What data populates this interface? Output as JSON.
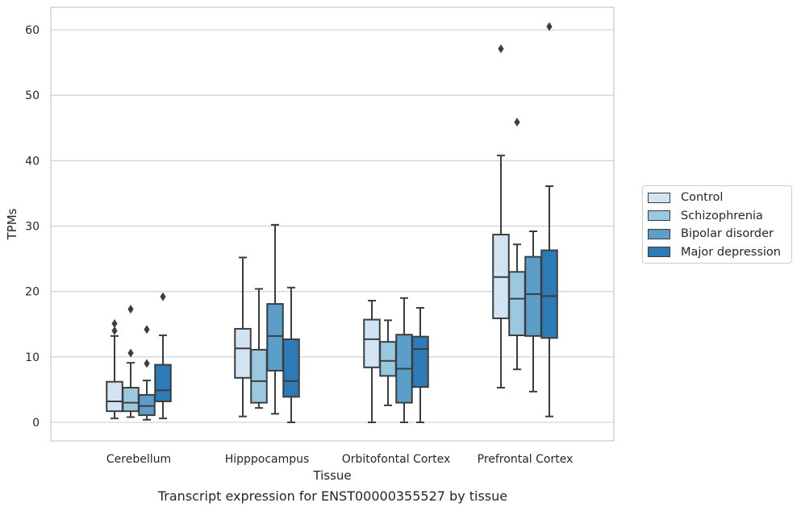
{
  "chart_data": {
    "type": "box",
    "xlabel": "Tissue",
    "ylabel": "TPMs",
    "caption": "Transcript expression for ENST00000355527 by tissue",
    "categories": [
      "Cerebellum",
      "Hipppocampus",
      "Orbitofontal Cortex",
      "Prefrontal Cortex"
    ],
    "y_ticks": [
      0,
      10,
      20,
      30,
      40,
      50,
      60
    ],
    "ylim": [
      -2.8,
      63.5
    ],
    "grid": "horizontal",
    "legend_position": "right",
    "series": [
      {
        "name": "Control",
        "color": "#d2e3f3",
        "boxes": [
          {
            "whislo": 0.6,
            "q1": 1.7,
            "med": 3.2,
            "q3": 6.2,
            "whishi": 13.2,
            "fliers": [
              14.0,
              15.1
            ]
          },
          {
            "whislo": 0.9,
            "q1": 6.8,
            "med": 11.3,
            "q3": 14.3,
            "whishi": 25.2,
            "fliers": []
          },
          {
            "whislo": 0.0,
            "q1": 8.4,
            "med": 12.7,
            "q3": 15.7,
            "whishi": 18.6,
            "fliers": []
          },
          {
            "whislo": 5.3,
            "q1": 15.9,
            "med": 22.2,
            "q3": 28.7,
            "whishi": 40.8,
            "fliers": [
              57.1
            ]
          }
        ]
      },
      {
        "name": "Schizophrenia",
        "color": "#9ac8e0",
        "boxes": [
          {
            "whislo": 0.8,
            "q1": 1.7,
            "med": 3.0,
            "q3": 5.3,
            "whishi": 9.1,
            "fliers": [
              10.6,
              17.3
            ]
          },
          {
            "whislo": 2.2,
            "q1": 3.0,
            "med": 6.3,
            "q3": 11.1,
            "whishi": 20.4,
            "fliers": []
          },
          {
            "whislo": 2.6,
            "q1": 7.1,
            "med": 9.4,
            "q3": 12.3,
            "whishi": 15.6,
            "fliers": []
          },
          {
            "whislo": 8.1,
            "q1": 13.3,
            "med": 18.9,
            "q3": 23.0,
            "whishi": 27.2,
            "fliers": [
              45.9
            ]
          }
        ]
      },
      {
        "name": "Bipolar disorder",
        "color": "#5a9ec9",
        "boxes": [
          {
            "whislo": 0.4,
            "q1": 1.1,
            "med": 2.5,
            "q3": 4.2,
            "whishi": 6.4,
            "fliers": [
              9.0,
              14.2
            ]
          },
          {
            "whislo": 1.3,
            "q1": 7.9,
            "med": 13.2,
            "q3": 18.1,
            "whishi": 30.2,
            "fliers": []
          },
          {
            "whislo": 0.0,
            "q1": 3.0,
            "med": 8.2,
            "q3": 13.4,
            "whishi": 19.0,
            "fliers": []
          },
          {
            "whislo": 4.7,
            "q1": 13.2,
            "med": 19.6,
            "q3": 25.3,
            "whishi": 29.2,
            "fliers": []
          }
        ]
      },
      {
        "name": "Major depression",
        "color": "#2c7bb6",
        "boxes": [
          {
            "whislo": 0.6,
            "q1": 3.2,
            "med": 4.9,
            "q3": 8.8,
            "whishi": 13.3,
            "fliers": [
              19.2
            ]
          },
          {
            "whislo": 0.0,
            "q1": 3.9,
            "med": 6.3,
            "q3": 12.7,
            "whishi": 20.6,
            "fliers": []
          },
          {
            "whislo": 0.0,
            "q1": 5.4,
            "med": 11.2,
            "q3": 13.1,
            "whishi": 17.5,
            "fliers": []
          },
          {
            "whislo": 0.9,
            "q1": 12.9,
            "med": 19.3,
            "q3": 26.3,
            "whishi": 36.1,
            "fliers": [
              60.5
            ]
          }
        ]
      }
    ]
  }
}
